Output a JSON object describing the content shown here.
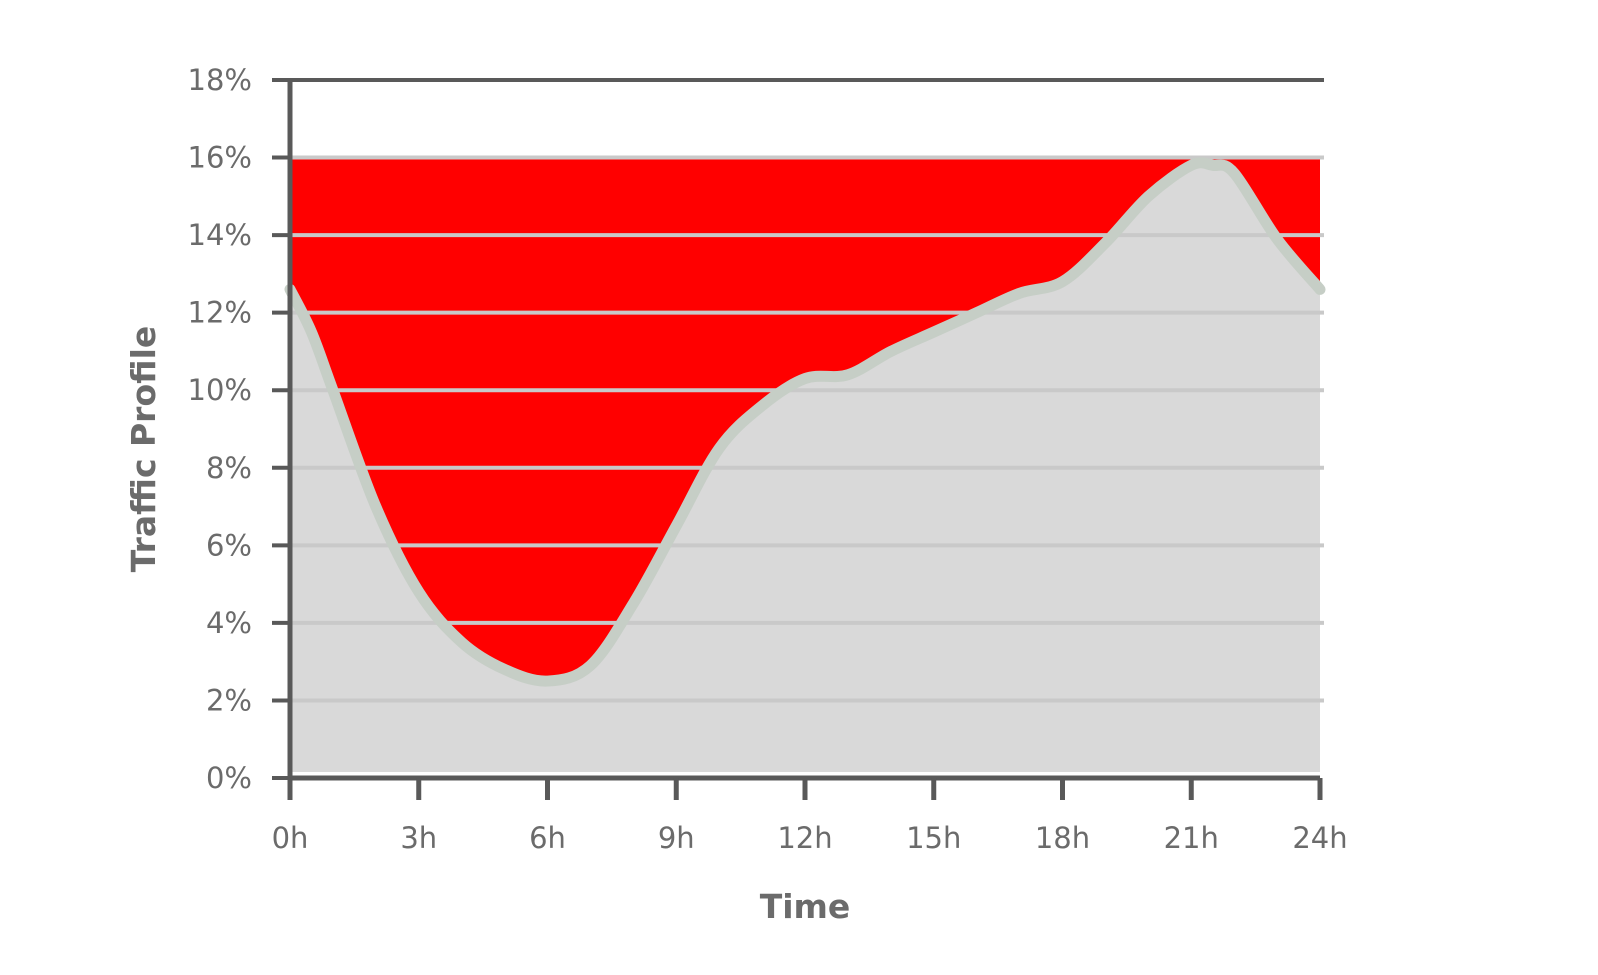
{
  "chart_data": {
    "type": "area",
    "title": "",
    "xlabel": "Time",
    "ylabel": "Traffic Profile",
    "x_unit": "h",
    "x": [
      0,
      0.5,
      1,
      2,
      3,
      4,
      5,
      6,
      7,
      8,
      9,
      10,
      11,
      12,
      13,
      14,
      15,
      16,
      17,
      18,
      19,
      20,
      21,
      21.5,
      22,
      23,
      24
    ],
    "y": [
      12.6,
      11.5,
      10.0,
      7.0,
      4.8,
      3.5,
      2.8,
      2.5,
      2.9,
      4.5,
      6.5,
      8.5,
      9.6,
      10.3,
      10.4,
      11.0,
      11.5,
      12.0,
      12.5,
      12.8,
      13.8,
      15.0,
      15.8,
      15.8,
      15.6,
      13.9,
      12.6
    ],
    "xlim": [
      0,
      24
    ],
    "ylim": [
      0,
      18
    ],
    "x_ticks": [
      0,
      3,
      6,
      9,
      12,
      15,
      18,
      21,
      24
    ],
    "x_tick_labels": [
      "0h",
      "3h",
      "6h",
      "9h",
      "12h",
      "15h",
      "18h",
      "21h",
      "24h"
    ],
    "y_ticks": [
      0,
      2,
      4,
      6,
      8,
      10,
      12,
      14,
      16,
      18
    ],
    "y_tick_labels": [
      "0%",
      "2%",
      "4%",
      "6%",
      "8%",
      "10%",
      "12%",
      "14%",
      "16%",
      "18%"
    ],
    "threshold": 16,
    "grid": true,
    "legend": "none",
    "colors": {
      "background": "#ffffff",
      "area_fill": "#d9d9d9",
      "curve_stroke": "#c6cec6",
      "threshold_gap_fill": "#ff0000",
      "gridline": "#c9c9c9",
      "axis": "#595959",
      "text": "#6b6b6b"
    }
  }
}
